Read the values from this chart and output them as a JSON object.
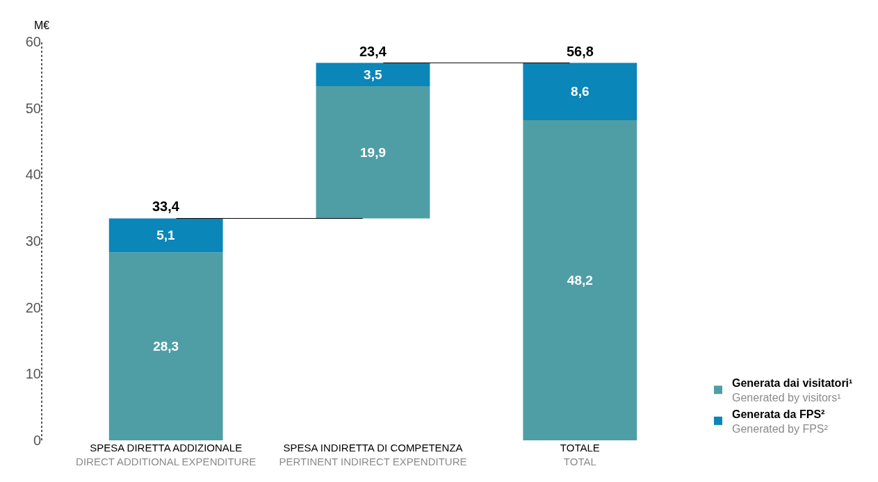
{
  "chart_data": {
    "type": "bar",
    "stacked": true,
    "ylabel": "M€",
    "categories": [
      "SPESA DIRETTA ADDIZIONALE\nDIRECT ADDITIONAL EXPENDITURE",
      "SPESA INDIRETTA DI COMPETENZA\nPERTINENT INDIRECT EXPENDITURE",
      "TOTALE\nTOTAL"
    ],
    "series": [
      {
        "name": "Generata dai visitatori¹\nGenerated by visitors¹",
        "color": "#4f9ea6",
        "base": [
          0,
          33.4,
          0
        ],
        "values": [
          28.3,
          19.9,
          48.2
        ],
        "value_labels": [
          "28,3",
          "19,9",
          "48,2"
        ]
      },
      {
        "name": "Generata da FPS²\nGenerated by FPS²",
        "color": "#0a86b8",
        "values": [
          5.1,
          3.5,
          8.6
        ],
        "value_labels": [
          "5,1",
          "3,5",
          "8,6"
        ]
      }
    ],
    "totals": [
      "33,4",
      "23,4",
      "56,8"
    ],
    "ylim": [
      0,
      60
    ],
    "yticks": [
      0,
      10,
      20,
      30,
      40,
      50,
      60
    ],
    "legend": "bottom right"
  }
}
